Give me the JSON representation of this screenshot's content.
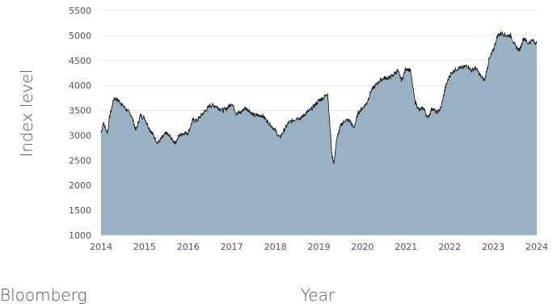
{
  "source_label": "Bloomberg",
  "chart_data": {
    "type": "area",
    "title": "",
    "xlabel": "Year",
    "ylabel": "Index level",
    "xlim": [
      2014,
      2024
    ],
    "ylim": [
      1000,
      5500
    ],
    "yticks": [
      1000,
      1500,
      2000,
      2500,
      3000,
      3500,
      4000,
      4500,
      5000,
      5500
    ],
    "xticks": [
      2014,
      2015,
      2016,
      2017,
      2018,
      2019,
      2020,
      2021,
      2022,
      2023,
      2024
    ],
    "grid": true,
    "fill_color": "#98b2c4",
    "line_color": "#111111",
    "series": [
      {
        "x": [
          2014.0,
          2014.05,
          2014.1,
          2014.15,
          2014.2,
          2014.3,
          2014.4,
          2014.5,
          2014.6,
          2014.7,
          2014.8,
          2014.9,
          2015.0,
          2015.1,
          2015.2,
          2015.3,
          2015.4,
          2015.5,
          2015.6,
          2015.7,
          2015.8,
          2015.9,
          2016.0,
          2016.1,
          2016.2,
          2016.3,
          2016.4,
          2016.5,
          2016.6,
          2016.7,
          2016.8,
          2016.9,
          2017.0,
          2017.1,
          2017.2,
          2017.3,
          2017.4,
          2017.5,
          2017.6,
          2017.7,
          2017.8,
          2017.9,
          2018.0,
          2018.1,
          2018.2,
          2018.3,
          2018.4,
          2018.5,
          2018.6,
          2018.7,
          2018.8,
          2018.9,
          2019.0,
          2019.1,
          2019.2,
          2019.3,
          2019.35,
          2019.4,
          2019.5,
          2019.6,
          2019.7,
          2019.8,
          2019.9,
          2020.0,
          2020.1,
          2020.2,
          2020.3,
          2020.4,
          2020.5,
          2020.6,
          2020.7,
          2020.8,
          2020.9,
          2021.0,
          2021.1,
          2021.2,
          2021.3,
          2021.4,
          2021.5,
          2021.6,
          2021.7,
          2021.8,
          2021.9,
          2022.0,
          2022.1,
          2022.2,
          2022.3,
          2022.4,
          2022.5,
          2022.6,
          2022.7,
          2022.8,
          2022.9,
          2023.0,
          2023.1,
          2023.2,
          2023.3,
          2023.4,
          2023.5,
          2023.6,
          2023.7,
          2023.8,
          2023.9,
          2024.0
        ],
        "y": [
          3050,
          3250,
          3150,
          3050,
          3400,
          3750,
          3700,
          3600,
          3500,
          3400,
          3100,
          3400,
          3350,
          3150,
          3000,
          2850,
          2950,
          3050,
          2950,
          2850,
          3000,
          3050,
          3050,
          3300,
          3300,
          3400,
          3500,
          3600,
          3600,
          3550,
          3500,
          3550,
          3650,
          3450,
          3450,
          3550,
          3500,
          3400,
          3400,
          3400,
          3300,
          3200,
          3100,
          2950,
          3100,
          3250,
          3300,
          3350,
          3350,
          3450,
          3500,
          3600,
          3700,
          3750,
          3850,
          2600,
          2450,
          2900,
          3200,
          3300,
          3300,
          3150,
          3450,
          3550,
          3650,
          3900,
          4000,
          4100,
          4150,
          4150,
          4200,
          4300,
          4100,
          4350,
          4300,
          3700,
          3500,
          3550,
          3350,
          3550,
          3450,
          3550,
          3950,
          4200,
          4300,
          4350,
          4350,
          4400,
          4300,
          4350,
          4200,
          4100,
          4500,
          4700,
          5000,
          5050,
          5000,
          5000,
          4800,
          4700,
          4950,
          4850,
          4900,
          4850
        ]
      }
    ]
  }
}
